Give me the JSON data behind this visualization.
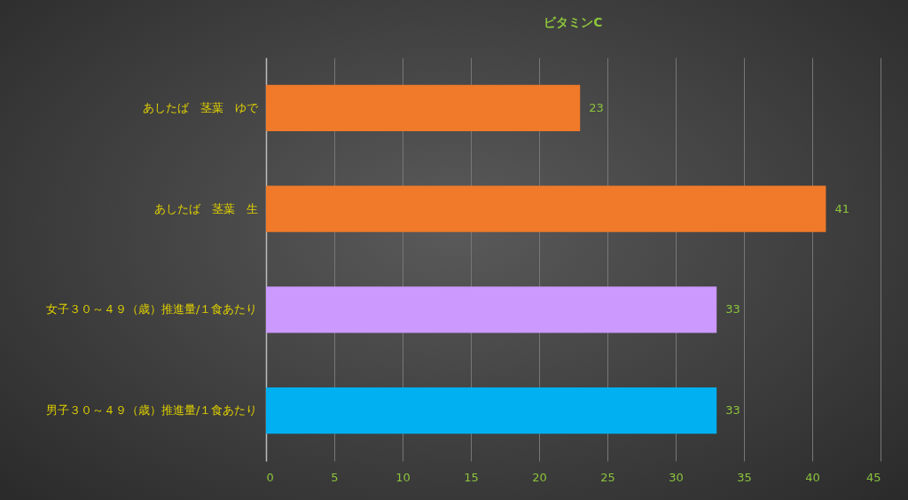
{
  "chart_data": {
    "type": "bar",
    "orientation": "horizontal",
    "title": "ビタミンC",
    "categories": [
      "あしたば　茎葉　ゆで",
      "あしたば　茎葉　生",
      "女子３０～４９（歳）推進量/１食あたり",
      "男子３０～４９（歳）推進量/１食あたり"
    ],
    "values": [
      23,
      41,
      33,
      33
    ],
    "colors": [
      "#f07a2a",
      "#f07a2a",
      "#cc99ff",
      "#00b0f0"
    ],
    "xlim": [
      0,
      45
    ],
    "xticks": [
      0,
      5,
      10,
      15,
      20,
      25,
      30,
      35,
      40,
      45
    ],
    "grid": "x",
    "data_labels": true
  }
}
